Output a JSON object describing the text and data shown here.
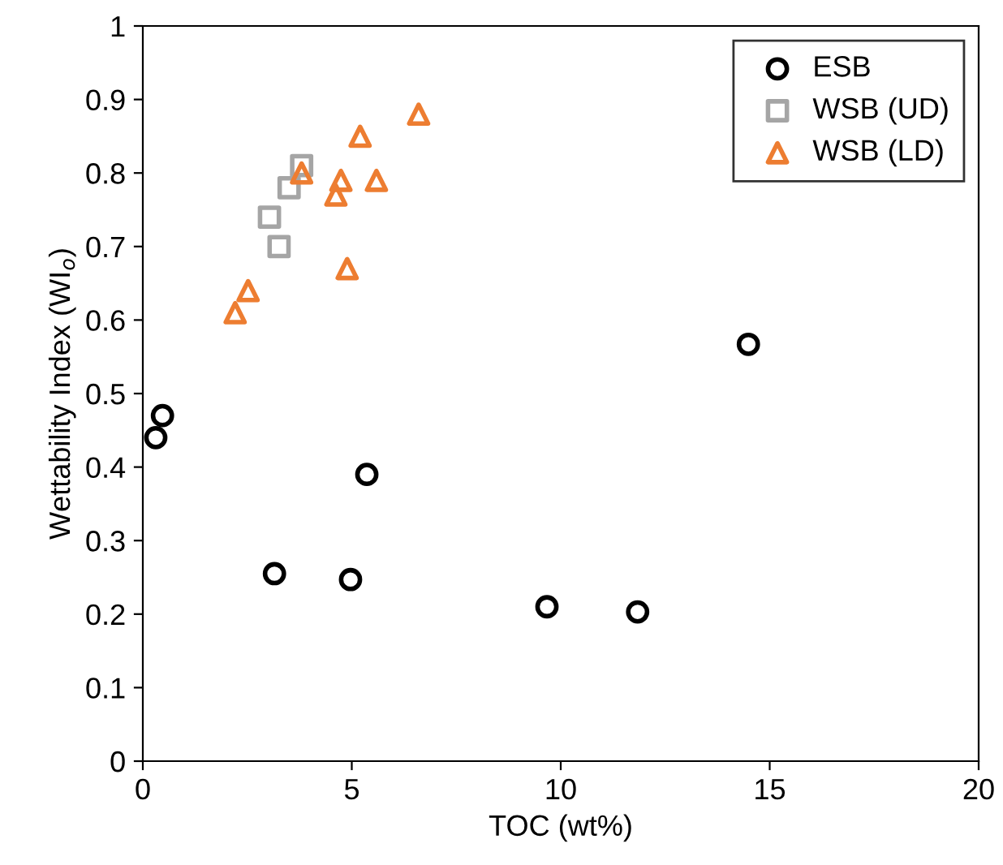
{
  "chart_data": {
    "type": "scatter",
    "xlabel": "TOC (wt%)",
    "ylabel": "Wettability Index (WI$_{o}$)",
    "xlim": [
      0,
      20
    ],
    "xticks": [
      0,
      5,
      10,
      15,
      20
    ],
    "ylim": [
      0,
      1
    ],
    "yticks": [
      0,
      0.1,
      0.2,
      0.3,
      0.4,
      0.5,
      0.6,
      0.7,
      0.8,
      0.9,
      1
    ],
    "legend": "top right",
    "series": [
      {
        "name": "ESB",
        "color": "#000000",
        "marker": "circle",
        "x": [
          0.31,
          0.47,
          3.15,
          4.97,
          5.36,
          9.67,
          11.84,
          14.49
        ],
        "values": [
          0.44,
          0.47,
          0.255,
          0.247,
          0.39,
          0.21,
          0.203,
          0.567
        ]
      },
      {
        "name": "WSB (UD)",
        "color": "#a5a5a5",
        "marker": "square",
        "x": [
          3.03,
          3.26,
          3.5,
          3.8
        ],
        "values": [
          0.74,
          0.7,
          0.78,
          0.81
        ]
      },
      {
        "name": "WSB (LD)",
        "color": "#ed7d31",
        "marker": "triangle",
        "x": [
          2.21,
          2.52,
          3.8,
          4.62,
          4.74,
          4.89,
          5.2,
          5.59,
          6.6
        ],
        "values": [
          0.61,
          0.64,
          0.8,
          0.77,
          0.79,
          0.67,
          0.85,
          0.79,
          0.88
        ]
      }
    ]
  }
}
